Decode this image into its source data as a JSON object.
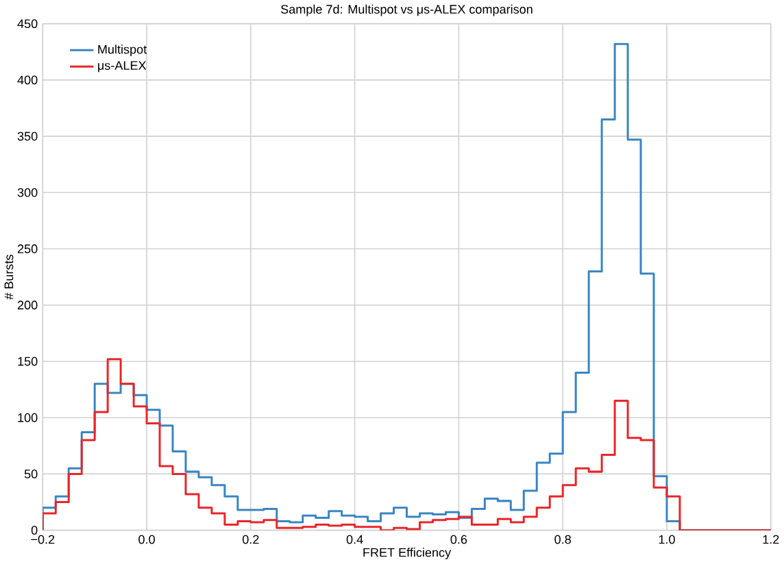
{
  "chart_data": {
    "type": "histogram",
    "title": "Sample 7d: Multispot vs μs-ALEX comparison",
    "xlabel": "FRET Efficiency",
    "ylabel": "# Bursts",
    "bins": [
      -0.2,
      -0.175,
      -0.15,
      -0.125,
      -0.1,
      -0.075,
      -0.05,
      -0.025,
      0,
      0.025,
      0.05,
      0.075,
      0.1,
      0.125,
      0.15,
      0.175,
      0.2,
      0.225,
      0.25,
      0.275,
      0.3,
      0.325,
      0.35,
      0.375,
      0.4,
      0.425,
      0.45,
      0.475,
      0.5,
      0.525,
      0.55,
      0.575,
      0.6,
      0.625,
      0.65,
      0.675,
      0.7,
      0.725,
      0.75,
      0.775,
      0.8,
      0.825,
      0.85,
      0.875,
      0.9,
      0.925,
      0.95,
      0.975,
      1.0,
      1.025,
      1.05,
      1.075,
      1.1,
      1.125,
      1.15,
      1.175,
      1.2
    ],
    "series": [
      {
        "name": "Multispot",
        "color": "#3a85c3",
        "values": [
          20,
          30,
          55,
          87,
          130,
          122,
          130,
          120,
          107,
          93,
          70,
          52,
          47,
          40,
          30,
          18,
          18,
          19,
          8,
          7,
          13,
          11,
          17,
          13,
          12,
          8,
          15,
          20,
          12,
          15,
          14,
          16,
          11,
          19,
          28,
          26,
          18,
          35,
          60,
          68,
          105,
          140,
          230,
          365,
          432,
          347,
          228,
          48,
          8,
          0,
          0,
          0,
          0,
          0,
          0,
          0
        ]
      },
      {
        "name": "μs-ALEX",
        "color": "#e8262a",
        "values": [
          15,
          25,
          50,
          80,
          105,
          152,
          130,
          110,
          95,
          57,
          50,
          32,
          20,
          15,
          5,
          8,
          7,
          9,
          2,
          2,
          3,
          5,
          4,
          5,
          3,
          3,
          0,
          2,
          1,
          7,
          9,
          10,
          12,
          5,
          5,
          10,
          7,
          12,
          20,
          30,
          40,
          55,
          52,
          67,
          115,
          82,
          80,
          38,
          30,
          0,
          0,
          0,
          0,
          0,
          0,
          0
        ]
      }
    ],
    "xlim": [
      -0.2,
      1.2
    ],
    "ylim": [
      0,
      450
    ],
    "xticks": [
      {
        "value": -0.2,
        "label": "−0.2"
      },
      {
        "value": 0,
        "label": "0.0"
      },
      0.2,
      0.4,
      0.6,
      0.8,
      {
        "value": 1.0,
        "label": "1.0"
      },
      1.2
    ],
    "yticks": [
      0,
      50,
      100,
      150,
      200,
      250,
      300,
      350,
      400,
      450
    ],
    "grid": true,
    "legend": "top left"
  }
}
